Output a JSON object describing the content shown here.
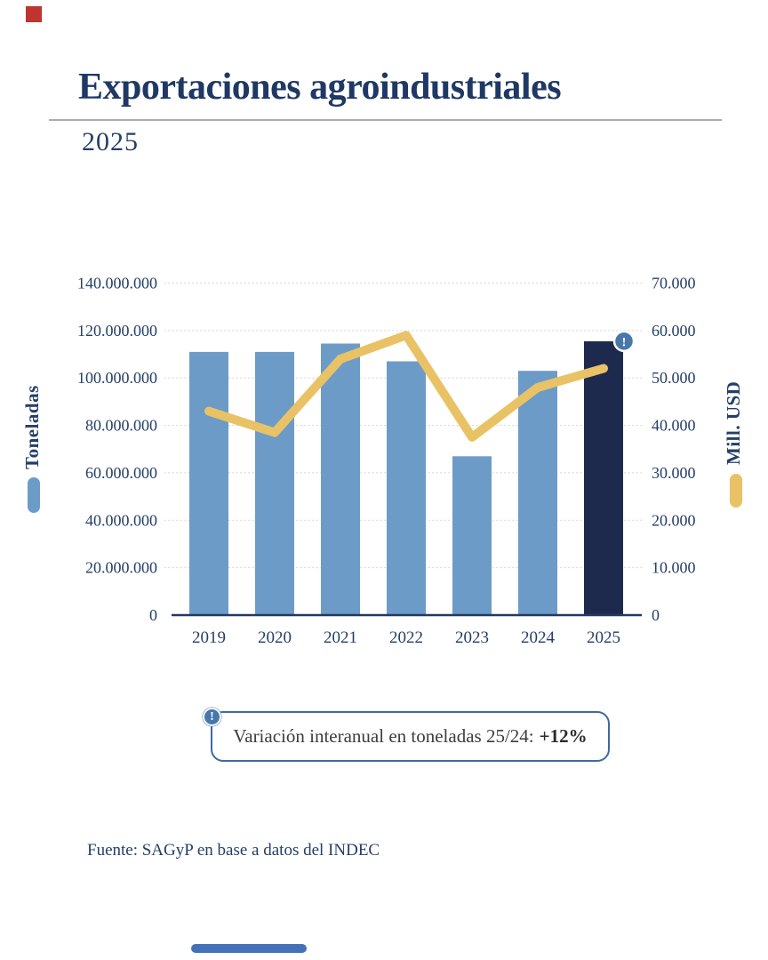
{
  "page": {
    "title": "Exportaciones agroindustriales",
    "subtitle": "2025",
    "source": "Fuente: SAGyP en base a datos del INDEC"
  },
  "callout": {
    "icon_glyph": "!",
    "text": "Variación interanual en toneladas 25/24:",
    "highlight": "+12%"
  },
  "bar_badge": {
    "icon_glyph": "!",
    "attached_to_category": "2025"
  },
  "colors": {
    "bar_blue": "#6d9bc8",
    "bar_navy_highlight": "#1e2a4d",
    "line_yellow": "#e9c266",
    "text_navy": "#253e66",
    "title_navy": "#1f3864",
    "badge_blue": "#4878ab",
    "callout_border": "#3f6aa0",
    "grid_gray": "#c9c9c9",
    "axis_navy": "#24385f",
    "divider_gray": "#ababab",
    "red_accent_square": "#bf3430",
    "bottom_accent_bar": "#4472b8"
  },
  "chart_data": {
    "type": "combo-bar-line",
    "categories": [
      "2019",
      "2020",
      "2021",
      "2022",
      "2023",
      "2024",
      "2025"
    ],
    "series": [
      {
        "name": "Toneladas",
        "type": "bar",
        "axis": "left",
        "values": [
          111000000,
          111000000,
          114500000,
          107000000,
          67000000,
          103000000,
          115500000
        ],
        "color": "#6d9bc8",
        "highlight_index": 6,
        "highlight_color": "#1e2a4d"
      },
      {
        "name": "Mill. USD",
        "type": "line",
        "axis": "right",
        "values": [
          43000,
          38500,
          54000,
          59000,
          37500,
          48000,
          52000
        ],
        "color": "#e9c266"
      }
    ],
    "left_axis": {
      "label": "Toneladas",
      "min": 0,
      "max": 140000000,
      "tick_step": 20000000,
      "ticks": [
        "140.000.000",
        "120.000.000",
        "100.000.000",
        "80.000.000",
        "60.000.000",
        "40.000.000",
        "20.000.000",
        "0"
      ]
    },
    "right_axis": {
      "label": "Mill. USD",
      "min": 0,
      "max": 70000,
      "tick_step": 10000,
      "ticks": [
        "70.000",
        "60.000",
        "50.000",
        "40.000",
        "30.000",
        "20.000",
        "10.000",
        "0"
      ]
    },
    "grid": "horizontal dotted",
    "legend_position": "sides-rotated",
    "annotation": "Variación interanual en toneladas 25/24: +12%"
  }
}
